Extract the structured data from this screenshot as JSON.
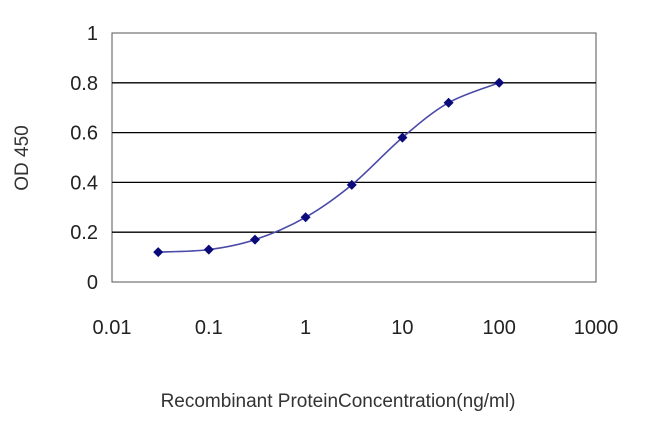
{
  "chart_data": {
    "type": "line",
    "title": "",
    "xlabel": "Recombinant ProteinConcentration(ng/ml)",
    "ylabel": "OD 450",
    "xscale": "log",
    "xlim": [
      0.01,
      1000
    ],
    "ylim": [
      0,
      1
    ],
    "x_ticks": [
      0.01,
      0.1,
      1,
      10,
      100,
      1000
    ],
    "x_tick_labels": [
      "0.01",
      "0.1",
      "1",
      "10",
      "100",
      "1000"
    ],
    "y_ticks": [
      0,
      0.2,
      0.4,
      0.6,
      0.8,
      1
    ],
    "y_tick_labels": [
      "0",
      "0.2",
      "0.4",
      "0.6",
      "0.8",
      "1"
    ],
    "grid": "horizontal",
    "series": [
      {
        "x": [
          0.03,
          0.1,
          0.3,
          1,
          3,
          10,
          30,
          100
        ],
        "y": [
          0.12,
          0.13,
          0.17,
          0.26,
          0.39,
          0.58,
          0.72,
          0.8
        ]
      }
    ],
    "colors": {
      "line": "#4a4aa8",
      "marker": "#0a0a7a",
      "grid": "#000000"
    }
  }
}
